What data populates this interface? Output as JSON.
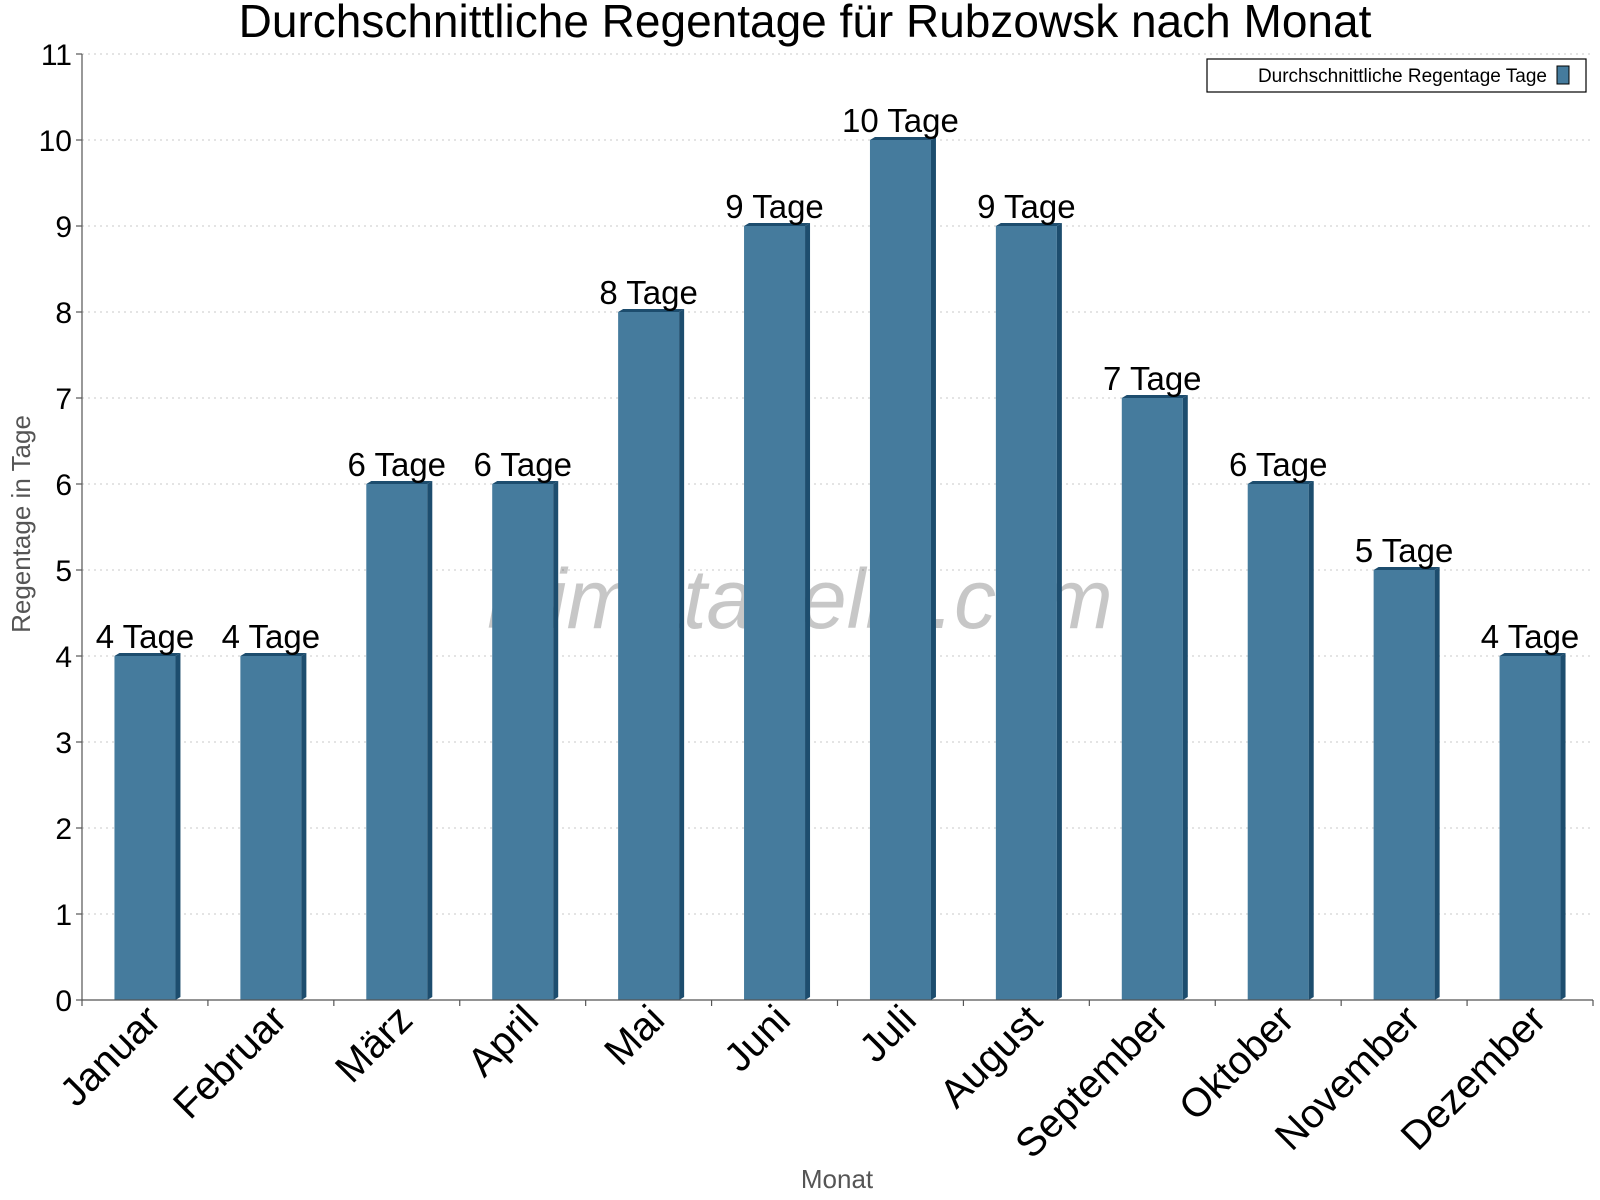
{
  "chart_data": {
    "type": "bar",
    "title": "Durchschnittliche Regentage für Rubzowsk nach Monat",
    "xlabel": "Monat",
    "ylabel": "Regentage in Tage",
    "categories": [
      "Januar",
      "Februar",
      "März",
      "April",
      "Mai",
      "Juni",
      "Juli",
      "August",
      "September",
      "Oktober",
      "November",
      "Dezember"
    ],
    "series": [
      {
        "name": "Durchschnittliche Regentage Tage",
        "values": [
          4,
          4,
          6,
          6,
          8,
          9,
          10,
          9,
          7,
          6,
          5,
          4
        ],
        "data_labels": [
          "4 Tage",
          "4 Tage",
          "6 Tage",
          "6 Tage",
          "8 Tage",
          "9 Tage",
          "10 Tage",
          "9 Tage",
          "7 Tage",
          "6 Tage",
          "5 Tage",
          "4 Tage"
        ]
      }
    ],
    "ylim": [
      0,
      11
    ],
    "yticks": [
      0,
      1,
      2,
      3,
      4,
      5,
      6,
      7,
      8,
      9,
      10,
      11
    ],
    "grid": true,
    "legend_position": "top-right"
  },
  "colors": {
    "bar_front": "#457b9d",
    "bar_side": "#1d4d6e",
    "bar_top": "#1d4d6e",
    "grid": "#c8c8c8",
    "axis": "#555555"
  },
  "watermark": "klimatabelle.com"
}
